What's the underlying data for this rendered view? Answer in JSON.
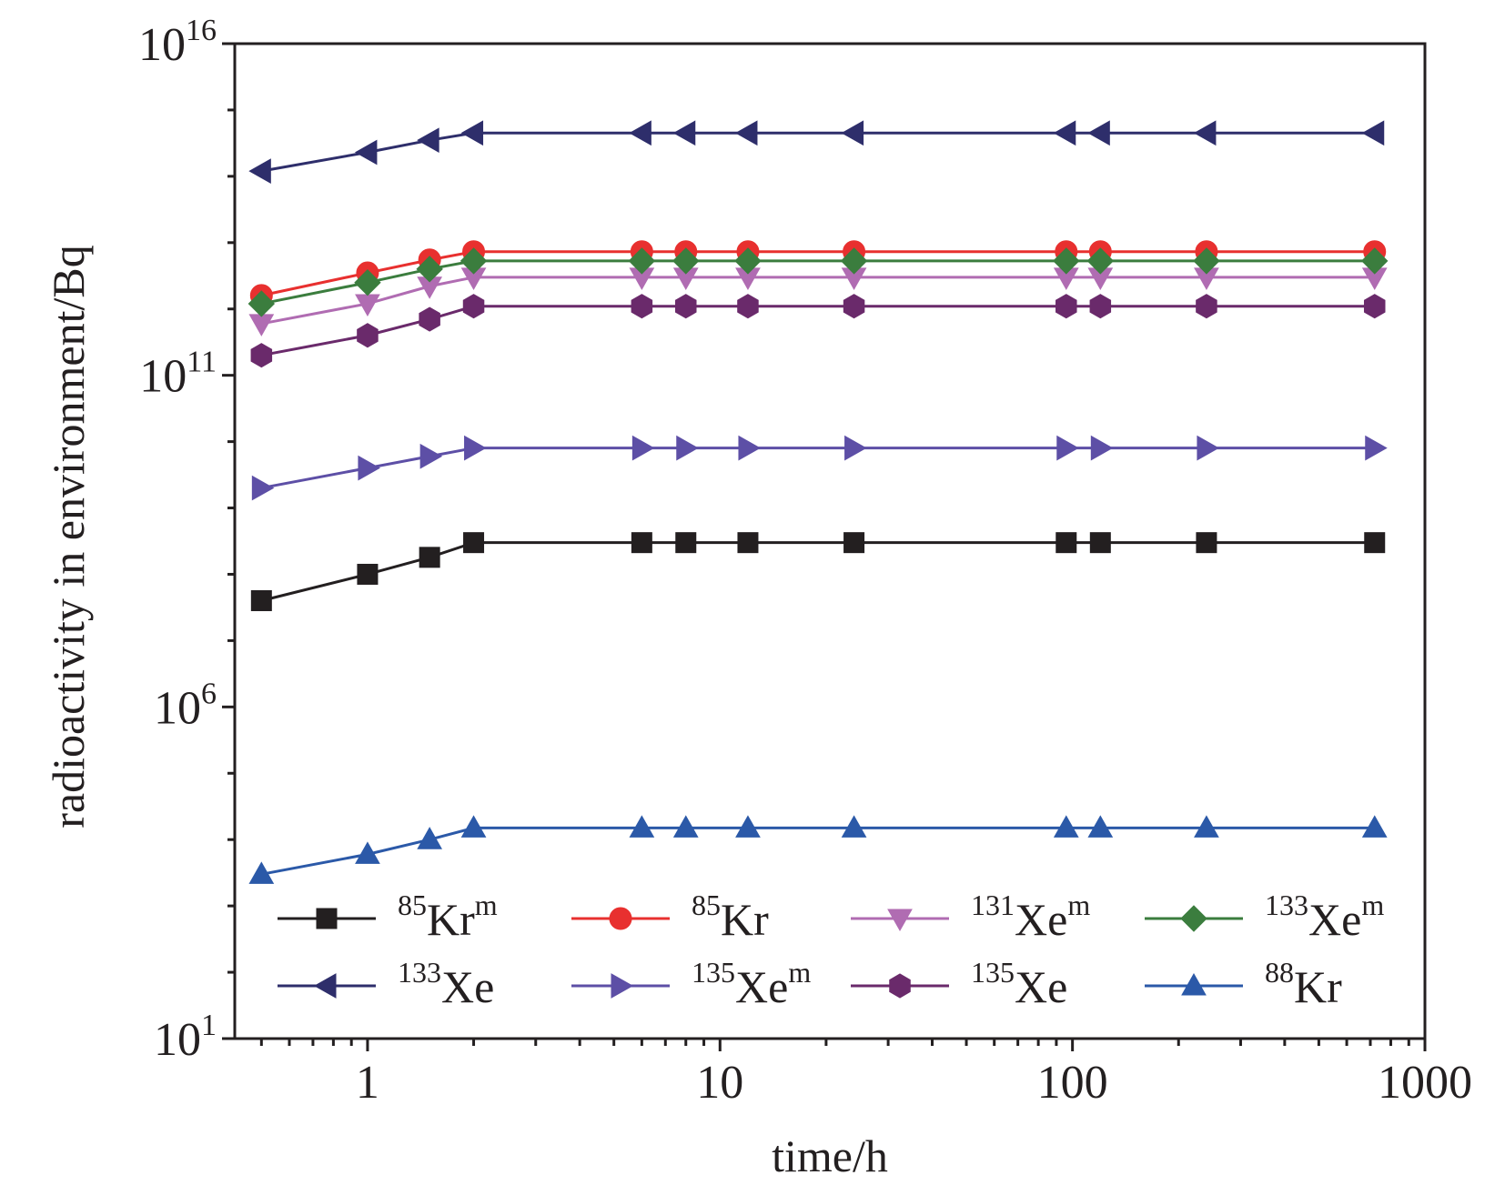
{
  "chart_data": {
    "type": "line",
    "title": "",
    "xlabel": "time/h",
    "ylabel": "radioactivity in environment/Bq",
    "xscale": "log",
    "yscale": "log",
    "xlim": [
      0.42,
      1000
    ],
    "ylim": [
      10,
      1e+16
    ],
    "grid": false,
    "legend_position": "bottom, inside plot, 4 columns",
    "x_ticks": [
      {
        "value": 1,
        "label": "1"
      },
      {
        "value": 10,
        "label": "10"
      },
      {
        "value": 100,
        "label": "100"
      },
      {
        "value": 1000,
        "label": "1000"
      }
    ],
    "y_ticks": [
      {
        "value": 10,
        "base": "10",
        "exp": "1"
      },
      {
        "value": 1000000,
        "base": "10",
        "exp": "6"
      },
      {
        "value": 100000000000,
        "base": "10",
        "exp": "11"
      },
      {
        "value": 1e+16,
        "base": "10",
        "exp": "16"
      }
    ],
    "x": [
      0.5,
      1,
      1.5,
      2,
      6,
      8,
      12,
      24,
      96,
      120,
      240,
      720
    ],
    "series": [
      {
        "name": "Kr",
        "sup_pre": "85",
        "sup_post": "m",
        "color": "#231f20",
        "marker": "square",
        "values": [
          40000000.0,
          100000000.0,
          180000000.0,
          300000000.0,
          300000000.0,
          300000000.0,
          300000000.0,
          300000000.0,
          300000000.0,
          300000000.0,
          300000000.0,
          300000000.0
        ]
      },
      {
        "name": "Kr",
        "sup_pre": "85",
        "sup_post": "",
        "color": "#e8302f",
        "marker": "circle",
        "values": [
          1600000000000.0,
          3500000000000.0,
          5500000000000.0,
          7300000000000.0,
          7300000000000.0,
          7300000000000.0,
          7300000000000.0,
          7300000000000.0,
          7300000000000.0,
          7300000000000.0,
          7300000000000.0,
          7300000000000.0
        ]
      },
      {
        "name": "Xe",
        "sup_pre": "131",
        "sup_post": "m",
        "color": "#b06cb2",
        "marker": "triangle-down",
        "values": [
          600000000000.0,
          1200000000000.0,
          2200000000000.0,
          3000000000000.0,
          3000000000000.0,
          3000000000000.0,
          3000000000000.0,
          3000000000000.0,
          3000000000000.0,
          3000000000000.0,
          3000000000000.0,
          3000000000000.0
        ]
      },
      {
        "name": "Xe",
        "sup_pre": "133",
        "sup_post": "m",
        "color": "#3b7d3e",
        "marker": "diamond",
        "values": [
          1200000000000.0,
          2500000000000.0,
          4000000000000.0,
          5300000000000.0,
          5300000000000.0,
          5300000000000.0,
          5300000000000.0,
          5300000000000.0,
          5300000000000.0,
          5300000000000.0,
          5300000000000.0,
          5300000000000.0
        ]
      },
      {
        "name": "Xe",
        "sup_pre": "133",
        "sup_post": "",
        "color": "#2e2e6b",
        "marker": "triangle-left",
        "values": [
          120000000000000.0,
          230000000000000.0,
          350000000000000.0,
          450000000000000.0,
          450000000000000.0,
          450000000000000.0,
          450000000000000.0,
          450000000000000.0,
          450000000000000.0,
          450000000000000.0,
          450000000000000.0,
          450000000000000.0
        ]
      },
      {
        "name": "Xe",
        "sup_pre": "135",
        "sup_post": "m",
        "color": "#5d4fa6",
        "marker": "triangle-right",
        "values": [
          2000000000.0,
          4000000000.0,
          6000000000.0,
          8000000000.0,
          8000000000.0,
          8000000000.0,
          8000000000.0,
          8000000000.0,
          8000000000.0,
          8000000000.0,
          8000000000.0,
          8000000000.0
        ]
      },
      {
        "name": "Xe",
        "sup_pre": "135",
        "sup_post": "",
        "color": "#6a2a6b",
        "marker": "hexagon",
        "values": [
          200000000000.0,
          400000000000.0,
          700000000000.0,
          1100000000000.0,
          1100000000000.0,
          1100000000000.0,
          1100000000000.0,
          1100000000000.0,
          1100000000000.0,
          1100000000000.0,
          1100000000000.0,
          1100000000000.0
        ]
      },
      {
        "name": "Kr",
        "sup_pre": "88",
        "sup_post": "",
        "color": "#2b59a8",
        "marker": "triangle-up",
        "values": [
          3000,
          6000,
          10000,
          15000,
          15000,
          15000,
          15000,
          15000,
          15000,
          15000,
          15000,
          15000
        ]
      }
    ]
  }
}
